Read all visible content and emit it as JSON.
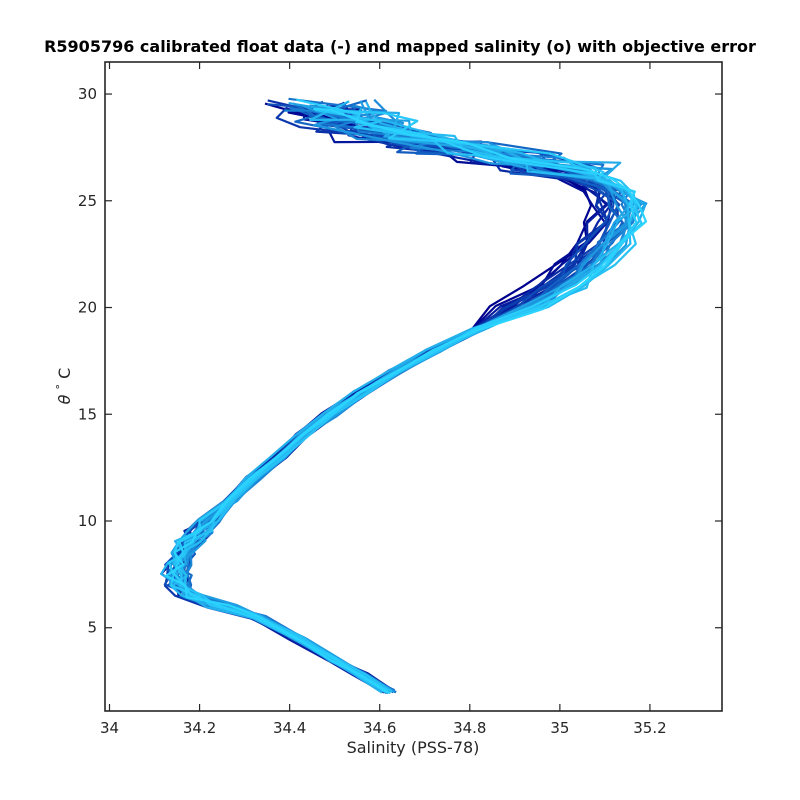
{
  "chart_data": {
    "type": "line",
    "title": "R5905796 calibrated float data (-) and mapped salinity (o) with objective error",
    "xlabel": "Salinity (PSS-78)",
    "ylabel_symbol": "θ",
    "ylabel_unit": "C",
    "xlim": [
      33.99,
      35.36
    ],
    "ylim": [
      1.1,
      31.5
    ],
    "xticks": [
      34,
      34.2,
      34.4,
      34.6,
      34.8,
      35,
      35.2
    ],
    "xtick_labels": [
      "34",
      "34.2",
      "34.4",
      "34.6",
      "34.8",
      "35",
      "35.2"
    ],
    "yticks": [
      5,
      10,
      15,
      20,
      25,
      30
    ],
    "ytick_labels": [
      "5",
      "10",
      "15",
      "20",
      "25",
      "30"
    ],
    "grid": false,
    "legend": false,
    "colormap": "dark blue (early profiles) to light cyan (late profiles)",
    "color_start": "#00008f",
    "color_end": "#2ad4ff",
    "profile_count": 36,
    "representative_profile": {
      "theta": [
        2.0,
        2.8,
        3.5,
        4.5,
        5.5,
        6.0,
        6.5,
        7.0,
        7.5,
        8.0,
        8.5,
        9.0,
        9.5,
        10.0,
        11.0,
        12.0,
        13.0,
        14.0,
        15.0,
        16.0,
        17.0,
        18.0,
        19.0,
        20.0,
        21.0,
        22.0,
        23.0,
        24.0,
        24.8,
        25.5,
        26.0,
        26.5,
        27.0,
        27.5,
        28.0,
        28.5,
        29.0,
        29.5
      ],
      "salinity": [
        34.62,
        34.56,
        34.5,
        34.42,
        34.33,
        34.25,
        34.18,
        34.155,
        34.15,
        34.155,
        34.165,
        34.18,
        34.2,
        34.22,
        34.27,
        34.32,
        34.38,
        34.43,
        34.49,
        34.56,
        34.64,
        34.72,
        34.82,
        34.92,
        35.0,
        35.06,
        35.1,
        35.13,
        35.14,
        35.12,
        35.07,
        35.0,
        34.9,
        34.75,
        34.62,
        34.55,
        34.5,
        34.46
      ]
    }
  }
}
